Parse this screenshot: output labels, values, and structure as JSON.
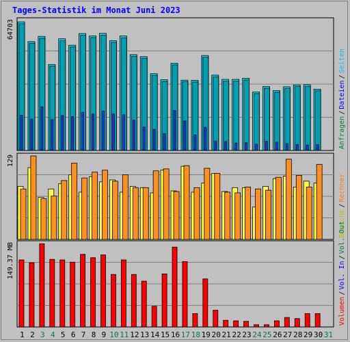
{
  "title": "Tages-Statistik im Monat Juni 2023",
  "colors": {
    "background": "#c0c0c0",
    "grid": "#808080",
    "title": "#0000ff",
    "anfragen": "#00e0ff",
    "dateien": "#00a0b0",
    "seiten": "#0040ff",
    "besuche": "#ffff40",
    "rechner": "#ff9020",
    "volumen": "#ff0000",
    "weekend": "#008040",
    "weekday": "#000000"
  },
  "chart_data": [
    {
      "type": "bar",
      "name": "hits-files-pages",
      "ymax_label": "64703",
      "ymax": 64703,
      "right_labels": [
        {
          "text": "Anfragen",
          "color": "#008040"
        },
        {
          "text": "Dateien",
          "color": "#0000ff"
        },
        {
          "text": "Seiten",
          "color": "#00c0ff"
        }
      ],
      "categories": [
        1,
        2,
        3,
        4,
        5,
        6,
        7,
        8,
        9,
        10,
        11,
        12,
        13,
        14,
        15,
        16,
        17,
        18,
        19,
        20,
        21,
        22,
        23,
        24,
        25,
        26,
        27,
        28,
        29,
        30,
        31
      ],
      "series": [
        {
          "name": "Anfragen",
          "values": [
            64000,
            54200,
            56800,
            42800,
            55600,
            52400,
            58200,
            57000,
            58300,
            54600,
            57000,
            47700,
            46700,
            38200,
            35200,
            43400,
            35000,
            34900,
            47300,
            37500,
            35400,
            35400,
            35900,
            29100,
            31800,
            29800,
            31700,
            32600,
            32700,
            30500,
            null
          ]
        },
        {
          "name": "Dateien",
          "values": [
            63100,
            53400,
            55900,
            42000,
            54700,
            51600,
            57300,
            56200,
            57400,
            53800,
            56100,
            46900,
            45900,
            37400,
            34400,
            42600,
            34300,
            34100,
            46500,
            36700,
            34600,
            34600,
            35100,
            28300,
            31000,
            29000,
            30900,
            31800,
            31900,
            29700,
            null
          ]
        },
        {
          "name": "Seiten",
          "values": [
            17500,
            15600,
            21700,
            15400,
            17400,
            16900,
            19000,
            18100,
            19600,
            18200,
            17800,
            15100,
            11700,
            10500,
            8400,
            19900,
            14700,
            7800,
            11500,
            4700,
            4500,
            3700,
            3900,
            3100,
            4600,
            4100,
            3400,
            3000,
            2700,
            2900,
            null
          ]
        }
      ]
    },
    {
      "type": "bar",
      "name": "visits-hosts",
      "ymax_label": "129",
      "ymax": 129,
      "right_labels": [
        {
          "text": "Besuche",
          "color": "#c0c000"
        },
        {
          "text": "Rechner",
          "color": "#ff8000"
        }
      ],
      "categories": [
        1,
        2,
        3,
        4,
        5,
        6,
        7,
        8,
        9,
        10,
        11,
        12,
        13,
        14,
        15,
        16,
        17,
        18,
        19,
        20,
        21,
        22,
        23,
        24,
        25,
        26,
        27,
        28,
        29,
        30,
        31
      ],
      "series": [
        {
          "name": "Besuche",
          "values": [
            82,
            111,
            65,
            78,
            86,
            100,
            73,
            97,
            89,
            92,
            73,
            82,
            80,
            72,
            107,
            75,
            113,
            73,
            87,
            102,
            74,
            80,
            80,
            50,
            82,
            94,
            98,
            81,
            90,
            87,
            null
          ]
        },
        {
          "name": "Rechner",
          "values": [
            78,
            129,
            63,
            67,
            91,
            118,
            95,
            104,
            107,
            90,
            100,
            80,
            80,
            106,
            109,
            74,
            114,
            80,
            110,
            102,
            73,
            72,
            81,
            78,
            76,
            96,
            124,
            99,
            81,
            116,
            null
          ]
        }
      ]
    },
    {
      "type": "bar",
      "name": "volume",
      "ymax_label": "149.37 MB",
      "ymax": 149.37,
      "right_labels": [
        {
          "text": "Volumen",
          "color": "#ff0000"
        },
        {
          "text": "Vol. In",
          "color": "#0000ff"
        },
        {
          "text": "Vol. Out",
          "color": "#008040"
        }
      ],
      "categories": [
        1,
        2,
        3,
        4,
        5,
        6,
        7,
        8,
        9,
        10,
        11,
        12,
        13,
        14,
        15,
        16,
        17,
        18,
        19,
        20,
        21,
        22,
        23,
        24,
        25,
        26,
        27,
        28,
        29,
        30,
        31
      ],
      "series": [
        {
          "name": "Volumen",
          "values": [
            120,
            115,
            149,
            121,
            120,
            116,
            130,
            124,
            129,
            94,
            120,
            94,
            82,
            37,
            95,
            143,
            117,
            24,
            86,
            30,
            12,
            11,
            10,
            4,
            4,
            11,
            17,
            15,
            24,
            24,
            null
          ]
        }
      ]
    }
  ],
  "x_labels": [
    {
      "text": "1",
      "weekend": false
    },
    {
      "text": "2",
      "weekend": false
    },
    {
      "text": "3",
      "weekend": true
    },
    {
      "text": "4",
      "weekend": true
    },
    {
      "text": "5",
      "weekend": false
    },
    {
      "text": "6",
      "weekend": false
    },
    {
      "text": "7",
      "weekend": false
    },
    {
      "text": "8",
      "weekend": false
    },
    {
      "text": "9",
      "weekend": false
    },
    {
      "text": "10",
      "weekend": true
    },
    {
      "text": "11",
      "weekend": true
    },
    {
      "text": "12",
      "weekend": false
    },
    {
      "text": "13",
      "weekend": false
    },
    {
      "text": "14",
      "weekend": false
    },
    {
      "text": "15",
      "weekend": false
    },
    {
      "text": "16",
      "weekend": false
    },
    {
      "text": "17",
      "weekend": true
    },
    {
      "text": "18",
      "weekend": true
    },
    {
      "text": "19",
      "weekend": false
    },
    {
      "text": "20",
      "weekend": false
    },
    {
      "text": "21",
      "weekend": false
    },
    {
      "text": "22",
      "weekend": false
    },
    {
      "text": "23",
      "weekend": false
    },
    {
      "text": "24",
      "weekend": true
    },
    {
      "text": "25",
      "weekend": true
    },
    {
      "text": "26",
      "weekend": false
    },
    {
      "text": "27",
      "weekend": false
    },
    {
      "text": "28",
      "weekend": false
    },
    {
      "text": "29",
      "weekend": false
    },
    {
      "text": "30",
      "weekend": false
    },
    {
      "text": "31",
      "weekend": true
    }
  ]
}
